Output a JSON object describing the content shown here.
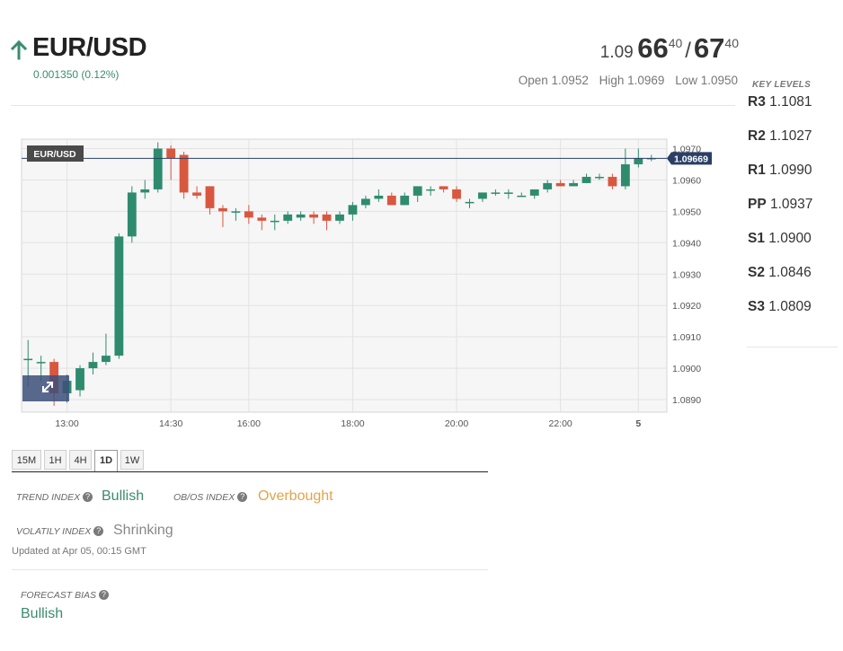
{
  "header": {
    "pair": "EUR/USD",
    "change": "0.001350 (0.12%)",
    "bid": {
      "prefix": "1.09",
      "big": "66",
      "sup": "40"
    },
    "ask": {
      "big": "67",
      "sup": "40"
    },
    "slash": "/",
    "open": "Open 1.0952",
    "high": "High 1.0969",
    "low": "Low 1.0950"
  },
  "key_levels": {
    "title": "KEY LEVELS",
    "items": [
      {
        "name": "R3",
        "value": "1.1081"
      },
      {
        "name": "R2",
        "value": "1.1027"
      },
      {
        "name": "R1",
        "value": "1.0990"
      },
      {
        "name": "PP",
        "value": "1.0937"
      },
      {
        "name": "S1",
        "value": "1.0900"
      },
      {
        "name": "S2",
        "value": "1.0846"
      },
      {
        "name": "S3",
        "value": "1.0809"
      }
    ]
  },
  "chart_data": {
    "type": "candlestick",
    "symbol_label": "EUR/USD",
    "current_price_label": "1.09669",
    "current_price": 1.09669,
    "ylim": [
      1.0886,
      1.0973
    ],
    "y_ticks": [
      "1.0970",
      "1.0960",
      "1.0950",
      "1.0940",
      "1.0930",
      "1.0920",
      "1.0910",
      "1.0900",
      "1.0890"
    ],
    "x_ticks": [
      "13:00",
      "14:30",
      "16:00",
      "18:00",
      "20:00",
      "22:00",
      "5"
    ],
    "candles": [
      {
        "o": 1.0903,
        "h": 1.0909,
        "l": 1.0894,
        "c": 1.0903
      },
      {
        "o": 1.0902,
        "h": 1.0904,
        "l": 1.0896,
        "c": 1.0902
      },
      {
        "o": 1.0902,
        "h": 1.0903,
        "l": 1.0888,
        "c": 1.0892
      },
      {
        "o": 1.0892,
        "h": 1.0898,
        "l": 1.0889,
        "c": 1.0896
      },
      {
        "o": 1.0893,
        "h": 1.0901,
        "l": 1.0891,
        "c": 1.09
      },
      {
        "o": 1.09,
        "h": 1.0905,
        "l": 1.0898,
        "c": 1.0902
      },
      {
        "o": 1.0902,
        "h": 1.0911,
        "l": 1.0901,
        "c": 1.0904
      },
      {
        "o": 1.0904,
        "h": 1.0943,
        "l": 1.0903,
        "c": 1.0942
      },
      {
        "o": 1.0942,
        "h": 1.0958,
        "l": 1.094,
        "c": 1.0956
      },
      {
        "o": 1.0956,
        "h": 1.096,
        "l": 1.0954,
        "c": 1.0957
      },
      {
        "o": 1.0957,
        "h": 1.0972,
        "l": 1.0956,
        "c": 1.097
      },
      {
        "o": 1.097,
        "h": 1.0971,
        "l": 1.096,
        "c": 1.0967
      },
      {
        "o": 1.0968,
        "h": 1.0969,
        "l": 1.0954,
        "c": 1.0956
      },
      {
        "o": 1.0956,
        "h": 1.0958,
        "l": 1.0954,
        "c": 1.0955
      },
      {
        "o": 1.0958,
        "h": 1.0958,
        "l": 1.0949,
        "c": 1.0951
      },
      {
        "o": 1.0951,
        "h": 1.0952,
        "l": 1.0945,
        "c": 1.095
      },
      {
        "o": 1.095,
        "h": 1.0951,
        "l": 1.0947,
        "c": 1.095
      },
      {
        "o": 1.095,
        "h": 1.0952,
        "l": 1.0946,
        "c": 1.0948
      },
      {
        "o": 1.0948,
        "h": 1.0949,
        "l": 1.0944,
        "c": 1.0947
      },
      {
        "o": 1.0947,
        "h": 1.0949,
        "l": 1.0944,
        "c": 1.0947
      },
      {
        "o": 1.0947,
        "h": 1.095,
        "l": 1.0946,
        "c": 1.0949
      },
      {
        "o": 1.0948,
        "h": 1.095,
        "l": 1.0947,
        "c": 1.0949
      },
      {
        "o": 1.0949,
        "h": 1.095,
        "l": 1.0946,
        "c": 1.0948
      },
      {
        "o": 1.0949,
        "h": 1.095,
        "l": 1.0944,
        "c": 1.0947
      },
      {
        "o": 1.0947,
        "h": 1.095,
        "l": 1.0946,
        "c": 1.0949
      },
      {
        "o": 1.0949,
        "h": 1.0953,
        "l": 1.0947,
        "c": 1.0952
      },
      {
        "o": 1.0952,
        "h": 1.0955,
        "l": 1.0951,
        "c": 1.0954
      },
      {
        "o": 1.0954,
        "h": 1.0957,
        "l": 1.0953,
        "c": 1.0955
      },
      {
        "o": 1.0955,
        "h": 1.0956,
        "l": 1.0952,
        "c": 1.0952
      },
      {
        "o": 1.0952,
        "h": 1.0956,
        "l": 1.0952,
        "c": 1.0955
      },
      {
        "o": 1.0955,
        "h": 1.0958,
        "l": 1.0953,
        "c": 1.0958
      },
      {
        "o": 1.0957,
        "h": 1.0958,
        "l": 1.0955,
        "c": 1.0957
      },
      {
        "o": 1.0958,
        "h": 1.0958,
        "l": 1.0956,
        "c": 1.0957
      },
      {
        "o": 1.0957,
        "h": 1.0958,
        "l": 1.0953,
        "c": 1.0954
      },
      {
        "o": 1.0953,
        "h": 1.0954,
        "l": 1.0951,
        "c": 1.0953
      },
      {
        "o": 1.0954,
        "h": 1.0956,
        "l": 1.0953,
        "c": 1.0956
      },
      {
        "o": 1.0956,
        "h": 1.0957,
        "l": 1.0955,
        "c": 1.0956
      },
      {
        "o": 1.0956,
        "h": 1.0957,
        "l": 1.0954,
        "c": 1.0956
      },
      {
        "o": 1.0955,
        "h": 1.0956,
        "l": 1.0955,
        "c": 1.0955
      },
      {
        "o": 1.0955,
        "h": 1.0957,
        "l": 1.0954,
        "c": 1.0957
      },
      {
        "o": 1.0957,
        "h": 1.096,
        "l": 1.0956,
        "c": 1.0959
      },
      {
        "o": 1.0959,
        "h": 1.096,
        "l": 1.0958,
        "c": 1.0958
      },
      {
        "o": 1.0958,
        "h": 1.096,
        "l": 1.0958,
        "c": 1.0959
      },
      {
        "o": 1.0959,
        "h": 1.0962,
        "l": 1.0959,
        "c": 1.0961
      },
      {
        "o": 1.0961,
        "h": 1.0962,
        "l": 1.096,
        "c": 1.0961
      },
      {
        "o": 1.0961,
        "h": 1.0962,
        "l": 1.0957,
        "c": 1.0958
      },
      {
        "o": 1.0958,
        "h": 1.097,
        "l": 1.0957,
        "c": 1.0965
      },
      {
        "o": 1.0965,
        "h": 1.097,
        "l": 1.0964,
        "c": 1.0967
      },
      {
        "o": 1.0967,
        "h": 1.0968,
        "l": 1.0966,
        "c": 1.0967
      }
    ]
  },
  "timeframes": [
    "15M",
    "1H",
    "4H",
    "1D",
    "1W"
  ],
  "active_timeframe": "1D",
  "indicators": {
    "trend_label": "TREND INDEX",
    "trend_value": "Bullish",
    "obos_label": "OB/OS INDEX",
    "obos_value": "Overbought",
    "volatility_label": "VOLATILY INDEX",
    "volatility_value": "Shrinking",
    "updated": "Updated at Apr 05, 00:15 GMT",
    "forecast_label": "FORECAST BIAS",
    "forecast_value": "Bullish",
    "help_glyph": "?"
  },
  "colors": {
    "up": "#2e8b6e",
    "down": "#d9573f",
    "price_line": "#2b3f66",
    "price_tag": "#2b3f66",
    "symbol_tag": "#4a4a4a",
    "brand_green": "#3a8c6e",
    "warning": "#e2a44a"
  },
  "icons": {
    "trend": "arrow-up-icon",
    "expand": "expand-icon",
    "help": "question-circle-icon"
  }
}
